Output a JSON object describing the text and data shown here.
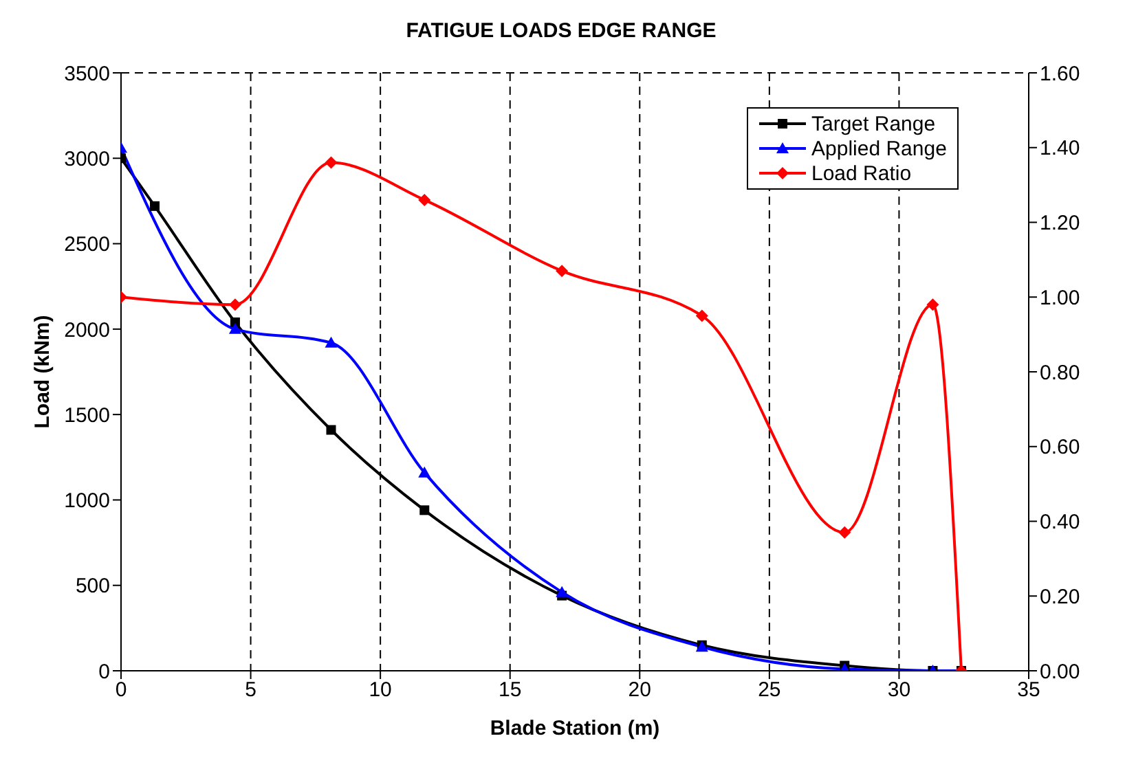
{
  "chart_data": {
    "type": "line",
    "title": "FATIGUE LOADS EDGE RANGE",
    "xlabel": "Blade Station (m)",
    "ylabel": "Load (kNm)",
    "xlim": [
      0,
      35
    ],
    "xticks": [
      0,
      5,
      10,
      15,
      20,
      25,
      30,
      35
    ],
    "ylim": [
      0,
      3500
    ],
    "yticks": [
      0,
      500,
      1000,
      1500,
      2000,
      2500,
      3000,
      3500
    ],
    "y2lim": [
      0,
      1.6
    ],
    "y2ticks": [
      {
        "value": 0,
        "label": "0.00"
      },
      {
        "value": 0.2,
        "label": "0.20"
      },
      {
        "value": 0.4,
        "label": "0.40"
      },
      {
        "value": 0.6,
        "label": "0.60"
      },
      {
        "value": 0.8,
        "label": "0.80"
      },
      {
        "value": 1,
        "label": "1.00"
      },
      {
        "value": 1.2,
        "label": "1.20"
      },
      {
        "value": 1.4,
        "label": "1.40"
      },
      {
        "value": 1.6,
        "label": "1.60"
      }
    ],
    "grid": true,
    "legend": "top right",
    "series": [
      {
        "name": "Target Range",
        "color": "#000000",
        "marker": "square",
        "x": [
          0,
          1.3,
          4.4,
          8.1,
          11.7,
          17.0,
          22.4,
          27.9,
          31.3,
          32.4
        ],
        "values": [
          3000,
          2720,
          2040,
          1410,
          940,
          440,
          150,
          30,
          0,
          0
        ]
      },
      {
        "name": "Applied Range",
        "color": "#0000ff",
        "marker": "triangle",
        "x": [
          0,
          4.4,
          8.1,
          11.7,
          17.0,
          22.4,
          27.9,
          31.3,
          32.4
        ],
        "values": [
          3060,
          2000,
          1920,
          1160,
          460,
          140,
          10,
          0,
          0
        ]
      },
      {
        "name": "Load Ratio",
        "color": "#ff0000",
        "marker": "diamond",
        "axis": "y2",
        "x": [
          0,
          4.4,
          8.1,
          11.7,
          17.0,
          22.4,
          27.9,
          31.3,
          32.4
        ],
        "values": [
          1.0,
          0.98,
          1.36,
          1.26,
          1.07,
          0.95,
          0.37,
          0.98,
          0.0
        ]
      }
    ]
  }
}
